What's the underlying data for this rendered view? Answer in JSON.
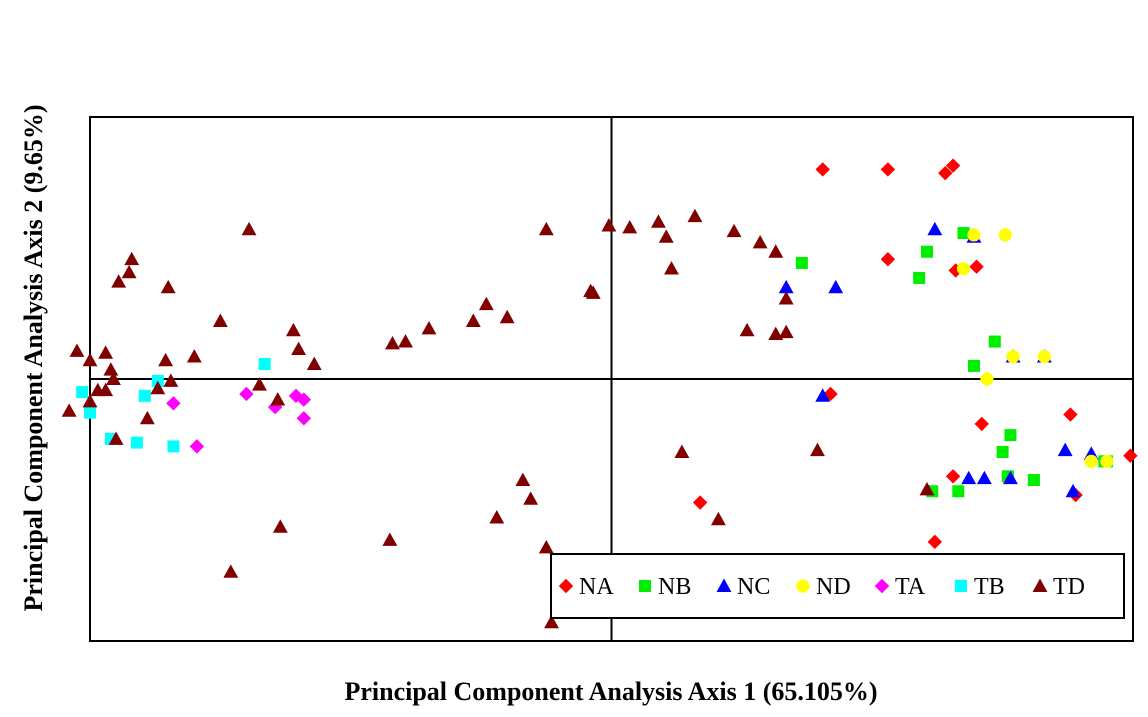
{
  "chart_data": {
    "type": "scatter",
    "title": "",
    "xlabel": "Principal Component Analysis Axis 1 (65.105%)",
    "ylabel": "Principal Component  Analysis Axis 2 (9.65%)",
    "xlim": [
      -10,
      10
    ],
    "ylim": [
      -7,
      7
    ],
    "grid": false,
    "axis_lines_at_zero": true,
    "legend": {
      "position": "bottom-right",
      "orientation": "horizontal"
    },
    "series": [
      {
        "name": "NA",
        "color": "#ff0000",
        "marker": "diamond",
        "points": [
          [
            4.05,
            5.6
          ],
          [
            5.3,
            5.6
          ],
          [
            6.55,
            5.7
          ],
          [
            6.4,
            5.5
          ],
          [
            5.3,
            3.2
          ],
          [
            7.0,
            3.0
          ],
          [
            6.6,
            2.9
          ],
          [
            4.2,
            -0.4
          ],
          [
            7.1,
            -1.2
          ],
          [
            8.8,
            -0.95
          ],
          [
            6.55,
            -2.6
          ],
          [
            8.9,
            -3.1
          ],
          [
            9.95,
            -2.05
          ],
          [
            1.7,
            -3.3
          ],
          [
            6.2,
            -4.35
          ]
        ]
      },
      {
        "name": "NB",
        "color": "#00ee00",
        "marker": "square",
        "points": [
          [
            6.75,
            3.9
          ],
          [
            3.65,
            3.1
          ],
          [
            6.05,
            3.4
          ],
          [
            5.9,
            2.7
          ],
          [
            7.35,
            1.0
          ],
          [
            6.95,
            0.35
          ],
          [
            9.45,
            -2.2
          ],
          [
            7.65,
            -1.5
          ],
          [
            7.5,
            -1.95
          ],
          [
            6.15,
            -3.0
          ],
          [
            6.65,
            -3.0
          ],
          [
            7.6,
            -2.6
          ],
          [
            8.1,
            -2.7
          ],
          [
            9.5,
            -2.2
          ]
        ]
      },
      {
        "name": "NC",
        "color": "#0000ff",
        "marker": "triangle",
        "points": [
          [
            6.2,
            4.0
          ],
          [
            6.95,
            3.8
          ],
          [
            3.35,
            2.45
          ],
          [
            4.3,
            2.45
          ],
          [
            4.05,
            -0.45
          ],
          [
            6.85,
            -2.65
          ],
          [
            7.15,
            -2.65
          ],
          [
            7.65,
            -2.65
          ],
          [
            8.7,
            -1.9
          ],
          [
            8.85,
            -3.0
          ],
          [
            9.2,
            -2.0
          ],
          [
            8.3,
            0.6
          ],
          [
            7.7,
            0.6
          ]
        ]
      },
      {
        "name": "ND",
        "color": "#ffff00",
        "marker": "circle",
        "points": [
          [
            6.95,
            3.85
          ],
          [
            7.55,
            3.85
          ],
          [
            6.75,
            2.95
          ],
          [
            7.7,
            0.6
          ],
          [
            8.3,
            0.6
          ],
          [
            7.2,
            0.0
          ],
          [
            9.2,
            -2.2
          ],
          [
            9.5,
            -2.2
          ]
        ]
      },
      {
        "name": "TA",
        "color": "#ff00ff",
        "marker": "diamond",
        "points": [
          [
            -8.4,
            -0.65
          ],
          [
            -7.0,
            -0.4
          ],
          [
            -6.45,
            -0.75
          ],
          [
            -6.05,
            -0.45
          ],
          [
            -5.9,
            -0.55
          ],
          [
            -5.9,
            -1.05
          ],
          [
            -7.95,
            -1.8
          ]
        ]
      },
      {
        "name": "TB",
        "color": "#00ffff",
        "marker": "square",
        "points": [
          [
            -6.65,
            0.4
          ],
          [
            -8.7,
            -0.05
          ],
          [
            -10.15,
            -0.35
          ],
          [
            -10.0,
            -0.9
          ],
          [
            -9.6,
            -1.6
          ],
          [
            -8.95,
            -0.45
          ],
          [
            -9.1,
            -1.7
          ],
          [
            -8.4,
            -1.8
          ]
        ]
      },
      {
        "name": "TD",
        "color": "#800000",
        "marker": "triangle",
        "points": [
          [
            -6.95,
            4.0
          ],
          [
            -9.2,
            3.2
          ],
          [
            -9.45,
            2.6
          ],
          [
            -9.25,
            2.85
          ],
          [
            -8.5,
            2.45
          ],
          [
            -7.5,
            1.55
          ],
          [
            -5.7,
            0.4
          ],
          [
            -9.7,
            0.7
          ],
          [
            -10.25,
            0.75
          ],
          [
            -10.0,
            0.5
          ],
          [
            -8.55,
            0.5
          ],
          [
            -8.0,
            0.6
          ],
          [
            -9.6,
            0.25
          ],
          [
            -8.7,
            -0.25
          ],
          [
            -9.7,
            -0.3
          ],
          [
            -9.85,
            -0.3
          ],
          [
            -9.55,
            0.0
          ],
          [
            -8.45,
            -0.05
          ],
          [
            -6.75,
            -0.15
          ],
          [
            -6.4,
            -0.55
          ],
          [
            -6.0,
            0.8
          ],
          [
            -6.1,
            1.3
          ],
          [
            -8.9,
            -1.05
          ],
          [
            -9.5,
            -1.6
          ],
          [
            -10.0,
            -0.6
          ],
          [
            -10.4,
            -0.85
          ],
          [
            -3.95,
            1.0
          ],
          [
            -4.2,
            0.95
          ],
          [
            -3.5,
            1.35
          ],
          [
            -2.65,
            1.55
          ],
          [
            -2.4,
            2.0
          ],
          [
            -1.25,
            4.0
          ],
          [
            -0.35,
            2.3
          ],
          [
            -6.35,
            -3.95
          ],
          [
            -7.3,
            -5.15
          ],
          [
            -4.25,
            -4.3
          ],
          [
            -2.2,
            -3.7
          ],
          [
            -1.7,
            -2.7
          ],
          [
            -1.55,
            -3.2
          ],
          [
            -1.25,
            -4.5
          ],
          [
            -1.15,
            -6.5
          ],
          [
            -2.0,
            1.65
          ],
          [
            -0.4,
            2.35
          ],
          [
            2.6,
            1.3
          ],
          [
            3.35,
            1.25
          ],
          [
            1.15,
            2.95
          ],
          [
            1.05,
            3.8
          ],
          [
            0.9,
            4.2
          ],
          [
            1.6,
            4.35
          ],
          [
            2.35,
            3.95
          ],
          [
            2.85,
            3.65
          ],
          [
            3.15,
            3.4
          ],
          [
            3.15,
            1.2
          ],
          [
            3.35,
            2.15
          ],
          [
            -0.05,
            4.1
          ],
          [
            0.35,
            4.05
          ],
          [
            2.05,
            -3.75
          ],
          [
            1.35,
            -1.95
          ],
          [
            3.95,
            -1.9
          ],
          [
            6.05,
            -2.95
          ]
        ]
      }
    ]
  }
}
